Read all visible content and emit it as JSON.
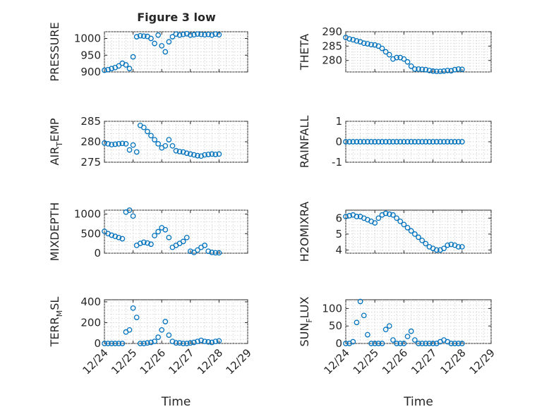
{
  "figure": {
    "title": "Figure 3 low"
  },
  "colors": {
    "series": "#0072bd",
    "axis": "#262626",
    "grid": "#c8c8c8"
  },
  "chart_data": [
    {
      "type": "scatter",
      "title": "Figure 3 low",
      "ylabel": "PRESSURE",
      "xlabel": "",
      "ylim": [
        900,
        1020
      ],
      "yticks": [
        900,
        950,
        1000
      ],
      "ytick_labels": [
        "900",
        "950",
        "1000"
      ],
      "xlim": [
        "12/24",
        "12/29"
      ],
      "xticks": [
        0,
        1,
        2,
        3,
        4,
        5
      ],
      "xtick_labels": [],
      "grid": true,
      "x": [
        "12/24 00:00",
        "12/24 03:00",
        "12/24 06:00",
        "12/24 09:00",
        "12/24 12:00",
        "12/24 15:00",
        "12/24 18:00",
        "12/24 21:00",
        "12/25 00:00",
        "12/25 03:00",
        "12/25 06:00",
        "12/25 09:00",
        "12/25 12:00",
        "12/25 15:00",
        "12/25 18:00",
        "12/25 21:00",
        "12/26 00:00",
        "12/26 03:00",
        "12/26 06:00",
        "12/26 09:00",
        "12/26 12:00",
        "12/26 15:00",
        "12/26 18:00",
        "12/26 21:00",
        "12/27 00:00",
        "12/27 03:00",
        "12/27 06:00",
        "12/27 09:00",
        "12/27 12:00",
        "12/27 15:00",
        "12/27 18:00",
        "12/27 21:00",
        "12/28 00:00"
      ],
      "y": [
        905,
        907,
        910,
        913,
        918,
        926,
        921,
        910,
        945,
        1005,
        1008,
        1007,
        1006,
        1000,
        985,
        1010,
        978,
        960,
        990,
        1005,
        1013,
        1010,
        1012,
        1014,
        1010,
        1011,
        1013,
        1012,
        1011,
        1012,
        1010,
        1013,
        1011
      ]
    },
    {
      "type": "scatter",
      "title": "",
      "ylabel": "THETA",
      "xlabel": "",
      "ylim": [
        276,
        290
      ],
      "yticks": [
        280,
        285,
        290
      ],
      "ytick_labels": [
        "280",
        "285",
        "290"
      ],
      "xlim": [
        "12/24",
        "12/29"
      ],
      "xticks": [
        0,
        1,
        2,
        3,
        4,
        5
      ],
      "xtick_labels": [],
      "grid": true,
      "x": [
        "12/24 00:00",
        "12/24 03:00",
        "12/24 06:00",
        "12/24 09:00",
        "12/24 12:00",
        "12/24 15:00",
        "12/24 18:00",
        "12/24 21:00",
        "12/25 00:00",
        "12/25 03:00",
        "12/25 06:00",
        "12/25 09:00",
        "12/25 12:00",
        "12/25 15:00",
        "12/25 18:00",
        "12/25 21:00",
        "12/26 00:00",
        "12/26 03:00",
        "12/26 06:00",
        "12/26 09:00",
        "12/26 12:00",
        "12/26 15:00",
        "12/26 18:00",
        "12/26 21:00",
        "12/27 00:00",
        "12/27 03:00",
        "12/27 06:00",
        "12/27 09:00",
        "12/27 12:00",
        "12/27 15:00",
        "12/27 18:00",
        "12/27 21:00",
        "12/28 00:00"
      ],
      "y": [
        288,
        287.5,
        287.2,
        286.8,
        286.5,
        286,
        285.8,
        285.5,
        285.4,
        285,
        284.2,
        283,
        282,
        280.5,
        281,
        281,
        280.5,
        279.5,
        278,
        277,
        277,
        276.9,
        276.8,
        276.5,
        276.3,
        276.2,
        276.2,
        276.3,
        276.5,
        276.4,
        276.8,
        277,
        276.9
      ]
    },
    {
      "type": "scatter",
      "title": "",
      "ylabel": "AIR_TEMP",
      "xlabel": "",
      "ylim": [
        275,
        285
      ],
      "yticks": [
        275,
        280,
        285
      ],
      "ytick_labels": [
        "275",
        "280",
        "285"
      ],
      "xlim": [
        "12/24",
        "12/29"
      ],
      "xticks": [
        0,
        1,
        2,
        3,
        4,
        5
      ],
      "xtick_labels": [],
      "grid": true,
      "x": [
        "12/24 00:00",
        "12/24 03:00",
        "12/24 06:00",
        "12/24 09:00",
        "12/24 12:00",
        "12/24 15:00",
        "12/24 18:00",
        "12/24 21:00",
        "12/25 00:00",
        "12/25 03:00",
        "12/25 06:00",
        "12/25 09:00",
        "12/25 12:00",
        "12/25 15:00",
        "12/25 18:00",
        "12/25 21:00",
        "12/26 00:00",
        "12/26 03:00",
        "12/26 06:00",
        "12/26 09:00",
        "12/26 12:00",
        "12/26 15:00",
        "12/26 18:00",
        "12/26 21:00",
        "12/27 00:00",
        "12/27 03:00",
        "12/27 06:00",
        "12/27 09:00",
        "12/27 12:00",
        "12/27 15:00",
        "12/27 18:00",
        "12/27 21:00",
        "12/28 00:00"
      ],
      "y": [
        279.7,
        279.5,
        279.3,
        279.4,
        279.5,
        279.6,
        279.5,
        278,
        279.2,
        277.5,
        284,
        283.5,
        282.5,
        281.5,
        280.5,
        279.5,
        278.5,
        279,
        280.5,
        279,
        277.8,
        277.6,
        277.5,
        277.2,
        277,
        276.8,
        276.6,
        276.5,
        276.8,
        276.9,
        277,
        276.9,
        277
      ]
    },
    {
      "type": "scatter",
      "title": "",
      "ylabel": "RAINFALL",
      "xlabel": "",
      "ylim": [
        -1,
        1
      ],
      "yticks": [
        -1,
        0,
        1
      ],
      "ytick_labels": [
        "-1",
        "0",
        "1"
      ],
      "xlim": [
        "12/24",
        "12/29"
      ],
      "xticks": [
        0,
        1,
        2,
        3,
        4,
        5
      ],
      "xtick_labels": [],
      "grid": true,
      "x": [
        "12/24 00:00",
        "12/24 03:00",
        "12/24 06:00",
        "12/24 09:00",
        "12/24 12:00",
        "12/24 15:00",
        "12/24 18:00",
        "12/24 21:00",
        "12/25 00:00",
        "12/25 03:00",
        "12/25 06:00",
        "12/25 09:00",
        "12/25 12:00",
        "12/25 15:00",
        "12/25 18:00",
        "12/25 21:00",
        "12/26 00:00",
        "12/26 03:00",
        "12/26 06:00",
        "12/26 09:00",
        "12/26 12:00",
        "12/26 15:00",
        "12/26 18:00",
        "12/26 21:00",
        "12/27 00:00",
        "12/27 03:00",
        "12/27 06:00",
        "12/27 09:00",
        "12/27 12:00",
        "12/27 15:00",
        "12/27 18:00",
        "12/27 21:00",
        "12/28 00:00"
      ],
      "y": [
        0,
        0,
        0,
        0,
        0,
        0,
        0,
        0,
        0,
        0,
        0,
        0,
        0,
        0,
        0,
        0,
        0,
        0,
        0,
        0,
        0,
        0,
        0,
        0,
        0,
        0,
        0,
        0,
        0,
        0,
        0,
        0,
        0
      ]
    },
    {
      "type": "scatter",
      "title": "",
      "ylabel": "MIXDEPTH",
      "xlabel": "",
      "ylim": [
        0,
        1100
      ],
      "yticks": [
        0,
        500,
        1000
      ],
      "ytick_labels": [
        "0",
        "500",
        "1000"
      ],
      "xlim": [
        "12/24",
        "12/29"
      ],
      "xticks": [
        0,
        1,
        2,
        3,
        4,
        5
      ],
      "xtick_labels": [],
      "grid": true,
      "x": [
        "12/24 00:00",
        "12/24 03:00",
        "12/24 06:00",
        "12/24 09:00",
        "12/24 12:00",
        "12/24 15:00",
        "12/24 18:00",
        "12/24 21:00",
        "12/25 00:00",
        "12/25 03:00",
        "12/25 06:00",
        "12/25 09:00",
        "12/25 12:00",
        "12/25 15:00",
        "12/25 18:00",
        "12/25 21:00",
        "12/26 00:00",
        "12/26 03:00",
        "12/26 06:00",
        "12/26 09:00",
        "12/26 12:00",
        "12/26 15:00",
        "12/26 18:00",
        "12/26 21:00",
        "12/27 00:00",
        "12/27 03:00",
        "12/27 06:00",
        "12/27 09:00",
        "12/27 12:00",
        "12/27 15:00",
        "12/27 18:00",
        "12/27 21:00",
        "12/28 00:00"
      ],
      "y": [
        560,
        500,
        460,
        430,
        400,
        370,
        1050,
        1100,
        950,
        200,
        250,
        280,
        260,
        230,
        450,
        550,
        650,
        600,
        400,
        150,
        200,
        250,
        300,
        400,
        50,
        20,
        80,
        150,
        200,
        50,
        20,
        10,
        10
      ]
    },
    {
      "type": "scatter",
      "title": "",
      "ylabel": "H2OMIXRA",
      "xlabel": "",
      "ylim": [
        3.8,
        6.5
      ],
      "yticks": [
        4,
        5,
        6
      ],
      "ytick_labels": [
        "4",
        "5",
        "6"
      ],
      "xlim": [
        "12/24",
        "12/29"
      ],
      "xticks": [
        0,
        1,
        2,
        3,
        4,
        5
      ],
      "xtick_labels": [],
      "grid": true,
      "x": [
        "12/24 00:00",
        "12/24 03:00",
        "12/24 06:00",
        "12/24 09:00",
        "12/24 12:00",
        "12/24 15:00",
        "12/24 18:00",
        "12/24 21:00",
        "12/25 00:00",
        "12/25 03:00",
        "12/25 06:00",
        "12/25 09:00",
        "12/25 12:00",
        "12/25 15:00",
        "12/25 18:00",
        "12/25 21:00",
        "12/26 00:00",
        "12/26 03:00",
        "12/26 06:00",
        "12/26 09:00",
        "12/26 12:00",
        "12/26 15:00",
        "12/26 18:00",
        "12/26 21:00",
        "12/27 00:00",
        "12/27 03:00",
        "12/27 06:00",
        "12/27 09:00",
        "12/27 12:00",
        "12/27 15:00",
        "12/27 18:00",
        "12/27 21:00",
        "12/28 00:00"
      ],
      "y": [
        6.1,
        6.15,
        6.2,
        6.1,
        6.1,
        6.0,
        5.9,
        5.8,
        5.7,
        6.0,
        6.2,
        6.3,
        6.25,
        6.2,
        6.0,
        5.8,
        5.6,
        5.4,
        5.2,
        5.0,
        4.8,
        4.6,
        4.4,
        4.2,
        4.1,
        4.0,
        4.0,
        4.1,
        4.3,
        4.35,
        4.3,
        4.2,
        4.2
      ]
    },
    {
      "type": "scatter",
      "title": "",
      "ylabel": "TERR_MSL",
      "xlabel": "Time",
      "ylim": [
        0,
        420
      ],
      "yticks": [
        0,
        200,
        400
      ],
      "ytick_labels": [
        "0",
        "200",
        "400"
      ],
      "xlim": [
        "12/24",
        "12/29"
      ],
      "xticks": [
        0,
        1,
        2,
        3,
        4,
        5
      ],
      "xtick_labels": [
        "12/24",
        "12/25",
        "12/26",
        "12/27",
        "12/28",
        "12/29"
      ],
      "grid": true,
      "x": [
        "12/24 00:00",
        "12/24 03:00",
        "12/24 06:00",
        "12/24 09:00",
        "12/24 12:00",
        "12/24 15:00",
        "12/24 18:00",
        "12/24 21:00",
        "12/25 00:00",
        "12/25 03:00",
        "12/25 06:00",
        "12/25 09:00",
        "12/25 12:00",
        "12/25 15:00",
        "12/25 18:00",
        "12/25 21:00",
        "12/26 00:00",
        "12/26 03:00",
        "12/26 06:00",
        "12/26 09:00",
        "12/26 12:00",
        "12/26 15:00",
        "12/26 18:00",
        "12/26 21:00",
        "12/27 00:00",
        "12/27 03:00",
        "12/27 06:00",
        "12/27 09:00",
        "12/27 12:00",
        "12/27 15:00",
        "12/27 18:00",
        "12/27 21:00",
        "12/28 00:00"
      ],
      "y": [
        0,
        0,
        0,
        0,
        0,
        0,
        110,
        130,
        340,
        250,
        0,
        0,
        5,
        10,
        20,
        60,
        130,
        210,
        80,
        20,
        5,
        5,
        0,
        0,
        5,
        10,
        20,
        30,
        20,
        15,
        10,
        20,
        25
      ]
    },
    {
      "type": "scatter",
      "title": "",
      "ylabel": "SUN_FLUX",
      "xlabel": "Time",
      "ylim": [
        0,
        125
      ],
      "yticks": [
        0,
        50,
        100
      ],
      "ytick_labels": [
        "0",
        "50",
        "100"
      ],
      "xlim": [
        "12/24",
        "12/29"
      ],
      "xticks": [
        0,
        1,
        2,
        3,
        4,
        5
      ],
      "xtick_labels": [
        "12/24",
        "12/25",
        "12/26",
        "12/27",
        "12/28",
        "12/29"
      ],
      "grid": true,
      "x": [
        "12/24 00:00",
        "12/24 03:00",
        "12/24 06:00",
        "12/24 09:00",
        "12/24 12:00",
        "12/24 15:00",
        "12/24 18:00",
        "12/24 21:00",
        "12/25 00:00",
        "12/25 03:00",
        "12/25 06:00",
        "12/25 09:00",
        "12/25 12:00",
        "12/25 15:00",
        "12/25 18:00",
        "12/25 21:00",
        "12/26 00:00",
        "12/26 03:00",
        "12/26 06:00",
        "12/26 09:00",
        "12/26 12:00",
        "12/26 15:00",
        "12/26 18:00",
        "12/26 21:00",
        "12/27 00:00",
        "12/27 03:00",
        "12/27 06:00",
        "12/27 09:00",
        "12/27 12:00",
        "12/27 15:00",
        "12/27 18:00",
        "12/27 21:00",
        "12/28 00:00"
      ],
      "y": [
        0,
        0,
        5,
        60,
        120,
        80,
        25,
        0,
        0,
        0,
        0,
        40,
        50,
        10,
        0,
        0,
        0,
        20,
        35,
        10,
        0,
        0,
        0,
        0,
        0,
        0,
        5,
        10,
        5,
        0,
        0,
        0,
        0
      ]
    }
  ]
}
